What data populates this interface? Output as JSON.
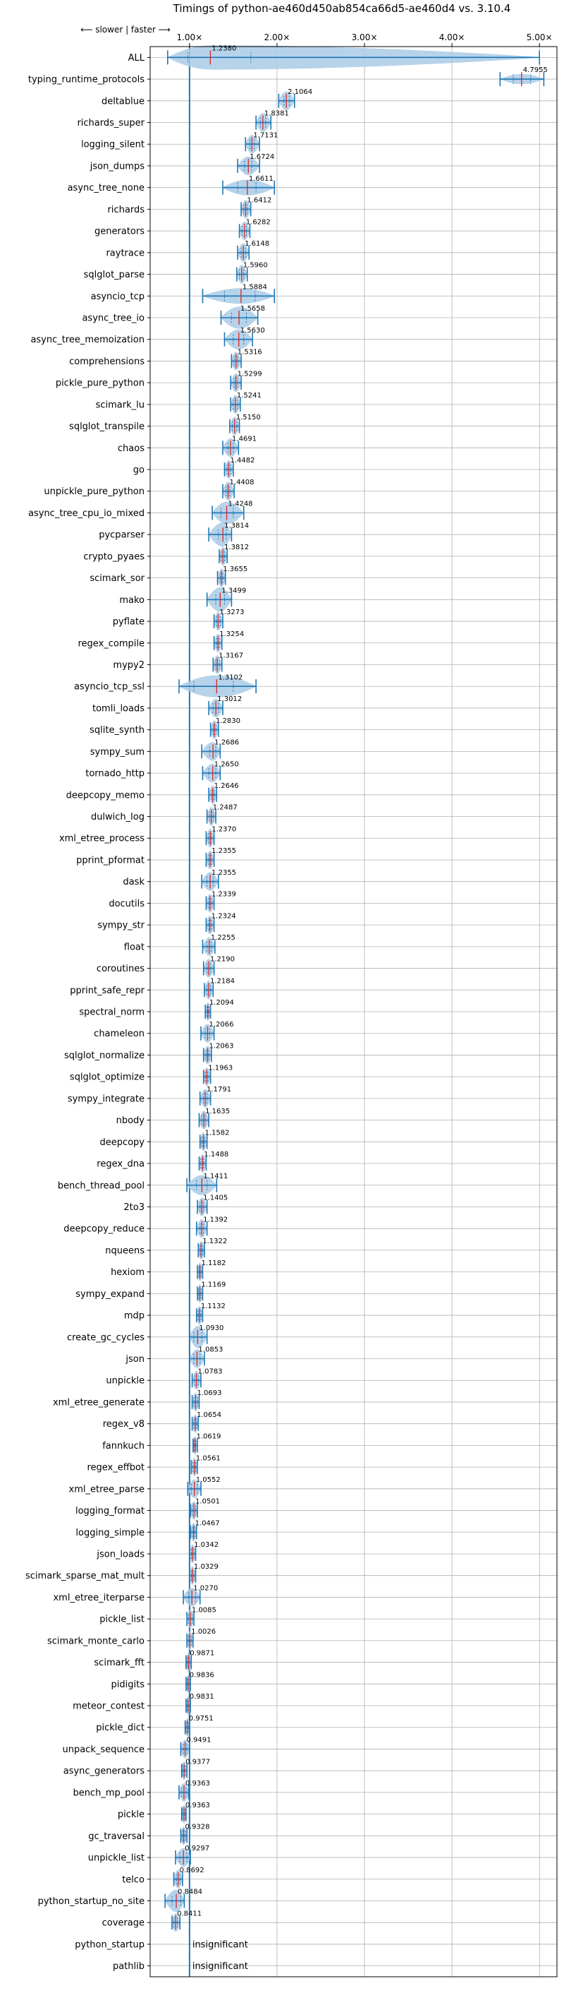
{
  "chart_data": {
    "type": "violin",
    "title": "Timings of python-ae460d450ab854ca66d5-ae460d4 vs. 3.10.4",
    "direction_hint": "⟵ slower | faster ⟶",
    "x_ticks": [
      1,
      2,
      3,
      4,
      5
    ],
    "x_tick_labels": [
      "1.00×",
      "2.00×",
      "3.00×",
      "4.00×",
      "5.00×"
    ],
    "xlim": [
      0.55,
      5.2
    ],
    "reference_line": 1.0,
    "grid": true,
    "colors": {
      "violin": "#a9cbe6",
      "line": "#1f77b4",
      "median": "#d62728",
      "grid": "#b0b0b0"
    },
    "rows": [
      {
        "label": "ALL",
        "value": 1.238,
        "min": 0.75,
        "max": 5.0,
        "q1": 0.98,
        "q3": 1.7,
        "spread": 0.55
      },
      {
        "label": "typing_runtime_protocols",
        "value": 4.7955,
        "min": 4.55,
        "max": 5.05,
        "q1": 4.7,
        "q3": 4.9,
        "spread": 0.22
      },
      {
        "label": "deltablue",
        "value": 2.1064,
        "min": 2.02,
        "max": 2.2,
        "q1": 2.08,
        "q3": 2.14
      },
      {
        "label": "richards_super",
        "value": 1.8381,
        "min": 1.76,
        "max": 1.93,
        "q1": 1.81,
        "q3": 1.87
      },
      {
        "label": "logging_silent",
        "value": 1.7131,
        "min": 1.64,
        "max": 1.8,
        "q1": 1.69,
        "q3": 1.74
      },
      {
        "label": "json_dumps",
        "value": 1.6724,
        "min": 1.55,
        "max": 1.8,
        "q1": 1.63,
        "q3": 1.71
      },
      {
        "label": "async_tree_none",
        "value": 1.6611,
        "min": 1.38,
        "max": 1.97,
        "q1": 1.55,
        "q3": 1.76,
        "spread": 0.35
      },
      {
        "label": "richards",
        "value": 1.6412,
        "min": 1.59,
        "max": 1.7,
        "q1": 1.62,
        "q3": 1.66
      },
      {
        "label": "generators",
        "value": 1.6282,
        "min": 1.57,
        "max": 1.69,
        "q1": 1.6,
        "q3": 1.65
      },
      {
        "label": "raytrace",
        "value": 1.6148,
        "min": 1.55,
        "max": 1.68,
        "q1": 1.59,
        "q3": 1.64
      },
      {
        "label": "sqlglot_parse",
        "value": 1.596,
        "min": 1.54,
        "max": 1.66,
        "q1": 1.57,
        "q3": 1.62
      },
      {
        "label": "asyncio_tcp",
        "value": 1.5884,
        "min": 1.15,
        "max": 1.97,
        "q1": 1.4,
        "q3": 1.75,
        "spread": 0.35
      },
      {
        "label": "async_tree_io",
        "value": 1.5658,
        "min": 1.36,
        "max": 1.78,
        "q1": 1.48,
        "q3": 1.65,
        "spread": 0.5
      },
      {
        "label": "async_tree_memoization",
        "value": 1.563,
        "min": 1.4,
        "max": 1.72,
        "q1": 1.5,
        "q3": 1.62,
        "spread": 0.45
      },
      {
        "label": "comprehensions",
        "value": 1.5316,
        "min": 1.48,
        "max": 1.59,
        "q1": 1.51,
        "q3": 1.55
      },
      {
        "label": "pickle_pure_python",
        "value": 1.5299,
        "min": 1.47,
        "max": 1.59,
        "q1": 1.51,
        "q3": 1.55
      },
      {
        "label": "scimark_lu",
        "value": 1.5241,
        "min": 1.47,
        "max": 1.58,
        "q1": 1.5,
        "q3": 1.55
      },
      {
        "label": "sqlglot_transpile",
        "value": 1.515,
        "min": 1.46,
        "max": 1.57,
        "q1": 1.49,
        "q3": 1.54
      },
      {
        "label": "chaos",
        "value": 1.4691,
        "min": 1.38,
        "max": 1.56,
        "q1": 1.44,
        "q3": 1.5
      },
      {
        "label": "go",
        "value": 1.4482,
        "min": 1.4,
        "max": 1.5,
        "q1": 1.43,
        "q3": 1.47
      },
      {
        "label": "unpickle_pure_python",
        "value": 1.4408,
        "min": 1.38,
        "max": 1.51,
        "q1": 1.42,
        "q3": 1.46
      },
      {
        "label": "async_tree_cpu_io_mixed",
        "value": 1.4248,
        "min": 1.26,
        "max": 1.62,
        "q1": 1.36,
        "q3": 1.5,
        "spread": 0.5
      },
      {
        "label": "pycparser",
        "value": 1.3814,
        "min": 1.22,
        "max": 1.48,
        "q1": 1.33,
        "q3": 1.42,
        "spread": 0.55
      },
      {
        "label": "crypto_pyaes",
        "value": 1.3812,
        "min": 1.34,
        "max": 1.43,
        "q1": 1.36,
        "q3": 1.4
      },
      {
        "label": "scimark_sor",
        "value": 1.3655,
        "min": 1.32,
        "max": 1.41,
        "q1": 1.35,
        "q3": 1.38
      },
      {
        "label": "mako",
        "value": 1.3499,
        "min": 1.2,
        "max": 1.48,
        "q1": 1.3,
        "q3": 1.4,
        "spread": 0.55
      },
      {
        "label": "pyflate",
        "value": 1.3273,
        "min": 1.28,
        "max": 1.38,
        "q1": 1.31,
        "q3": 1.35
      },
      {
        "label": "regex_compile",
        "value": 1.3254,
        "min": 1.28,
        "max": 1.37,
        "q1": 1.31,
        "q3": 1.34
      },
      {
        "label": "mypy2",
        "value": 1.3167,
        "min": 1.27,
        "max": 1.37,
        "q1": 1.3,
        "q3": 1.34
      },
      {
        "label": "asyncio_tcp_ssl",
        "value": 1.3102,
        "min": 0.88,
        "max": 1.76,
        "q1": 1.05,
        "q3": 1.5,
        "spread": 0.5
      },
      {
        "label": "tomli_loads",
        "value": 1.3012,
        "min": 1.22,
        "max": 1.38,
        "q1": 1.27,
        "q3": 1.33
      },
      {
        "label": "sqlite_synth",
        "value": 1.283,
        "min": 1.24,
        "max": 1.33,
        "q1": 1.27,
        "q3": 1.3
      },
      {
        "label": "sympy_sum",
        "value": 1.2686,
        "min": 1.14,
        "max": 1.35,
        "q1": 1.23,
        "q3": 1.3
      },
      {
        "label": "tornado_http",
        "value": 1.265,
        "min": 1.15,
        "max": 1.35,
        "q1": 1.22,
        "q3": 1.3
      },
      {
        "label": "deepcopy_memo",
        "value": 1.2646,
        "min": 1.22,
        "max": 1.31,
        "q1": 1.25,
        "q3": 1.28
      },
      {
        "label": "dulwich_log",
        "value": 1.2487,
        "min": 1.2,
        "max": 1.3,
        "q1": 1.23,
        "q3": 1.27
      },
      {
        "label": "xml_etree_process",
        "value": 1.237,
        "min": 1.19,
        "max": 1.28,
        "q1": 1.22,
        "q3": 1.25
      },
      {
        "label": "pprint_pformat",
        "value": 1.2355,
        "min": 1.19,
        "max": 1.28,
        "q1": 1.22,
        "q3": 1.25
      },
      {
        "label": "dask",
        "value": 1.2355,
        "min": 1.14,
        "max": 1.33,
        "q1": 1.2,
        "q3": 1.27
      },
      {
        "label": "docutils",
        "value": 1.2339,
        "min": 1.19,
        "max": 1.28,
        "q1": 1.22,
        "q3": 1.25
      },
      {
        "label": "sympy_str",
        "value": 1.2324,
        "min": 1.19,
        "max": 1.28,
        "q1": 1.22,
        "q3": 1.25
      },
      {
        "label": "float",
        "value": 1.2255,
        "min": 1.15,
        "max": 1.29,
        "q1": 1.2,
        "q3": 1.25
      },
      {
        "label": "coroutines",
        "value": 1.219,
        "min": 1.16,
        "max": 1.28,
        "q1": 1.2,
        "q3": 1.24
      },
      {
        "label": "pprint_safe_repr",
        "value": 1.2184,
        "min": 1.17,
        "max": 1.27,
        "q1": 1.2,
        "q3": 1.24
      },
      {
        "label": "spectral_norm",
        "value": 1.2094,
        "min": 1.18,
        "max": 1.24,
        "q1": 1.2,
        "q3": 1.22
      },
      {
        "label": "chameleon",
        "value": 1.2066,
        "min": 1.13,
        "max": 1.28,
        "q1": 1.18,
        "q3": 1.23
      },
      {
        "label": "sqlglot_normalize",
        "value": 1.2063,
        "min": 1.16,
        "max": 1.25,
        "q1": 1.19,
        "q3": 1.22
      },
      {
        "label": "sqlglot_optimize",
        "value": 1.1963,
        "min": 1.16,
        "max": 1.24,
        "q1": 1.18,
        "q3": 1.21
      },
      {
        "label": "sympy_integrate",
        "value": 1.1791,
        "min": 1.12,
        "max": 1.24,
        "q1": 1.16,
        "q3": 1.2
      },
      {
        "label": "nbody",
        "value": 1.1635,
        "min": 1.11,
        "max": 1.22,
        "q1": 1.14,
        "q3": 1.18
      },
      {
        "label": "deepcopy",
        "value": 1.1582,
        "min": 1.12,
        "max": 1.2,
        "q1": 1.14,
        "q3": 1.17
      },
      {
        "label": "regex_dna",
        "value": 1.1488,
        "min": 1.11,
        "max": 1.19,
        "q1": 1.13,
        "q3": 1.16
      },
      {
        "label": "bench_thread_pool",
        "value": 1.1411,
        "min": 0.97,
        "max": 1.31,
        "q1": 1.08,
        "q3": 1.2,
        "spread": 0.45
      },
      {
        "label": "2to3",
        "value": 1.1405,
        "min": 1.09,
        "max": 1.2,
        "q1": 1.12,
        "q3": 1.16
      },
      {
        "label": "deepcopy_reduce",
        "value": 1.1392,
        "min": 1.08,
        "max": 1.2,
        "q1": 1.12,
        "q3": 1.16
      },
      {
        "label": "nqueens",
        "value": 1.1322,
        "min": 1.1,
        "max": 1.17,
        "q1": 1.12,
        "q3": 1.15
      },
      {
        "label": "hexiom",
        "value": 1.1182,
        "min": 1.09,
        "max": 1.15,
        "q1": 1.11,
        "q3": 1.13
      },
      {
        "label": "sympy_expand",
        "value": 1.1169,
        "min": 1.09,
        "max": 1.15,
        "q1": 1.1,
        "q3": 1.13
      },
      {
        "label": "mdp",
        "value": 1.1132,
        "min": 1.08,
        "max": 1.15,
        "q1": 1.1,
        "q3": 1.13
      },
      {
        "label": "create_gc_cycles",
        "value": 1.093,
        "min": 1.0,
        "max": 1.2,
        "q1": 1.05,
        "q3": 1.14,
        "spread": 0.5
      },
      {
        "label": "json",
        "value": 1.0853,
        "min": 1.0,
        "max": 1.17,
        "q1": 1.05,
        "q3": 1.12
      },
      {
        "label": "unpickle",
        "value": 1.0783,
        "min": 1.03,
        "max": 1.13,
        "q1": 1.06,
        "q3": 1.1
      },
      {
        "label": "xml_etree_generate",
        "value": 1.0693,
        "min": 1.03,
        "max": 1.11,
        "q1": 1.05,
        "q3": 1.09
      },
      {
        "label": "regex_v8",
        "value": 1.0654,
        "min": 1.03,
        "max": 1.1,
        "q1": 1.05,
        "q3": 1.08
      },
      {
        "label": "fannkuch",
        "value": 1.0619,
        "min": 1.04,
        "max": 1.09,
        "q1": 1.05,
        "q3": 1.07
      },
      {
        "label": "regex_effbot",
        "value": 1.0561,
        "min": 1.02,
        "max": 1.09,
        "q1": 1.04,
        "q3": 1.07
      },
      {
        "label": "xml_etree_parse",
        "value": 1.0552,
        "min": 0.98,
        "max": 1.13,
        "q1": 1.02,
        "q3": 1.09
      },
      {
        "label": "logging_format",
        "value": 1.0501,
        "min": 1.01,
        "max": 1.09,
        "q1": 1.03,
        "q3": 1.07
      },
      {
        "label": "logging_simple",
        "value": 1.0467,
        "min": 1.01,
        "max": 1.08,
        "q1": 1.03,
        "q3": 1.06
      },
      {
        "label": "json_loads",
        "value": 1.0342,
        "min": 1.0,
        "max": 1.07,
        "q1": 1.02,
        "q3": 1.05
      },
      {
        "label": "scimark_sparse_mat_mult",
        "value": 1.0329,
        "min": 1.0,
        "max": 1.07,
        "q1": 1.02,
        "q3": 1.05
      },
      {
        "label": "xml_etree_iterparse",
        "value": 1.027,
        "min": 0.93,
        "max": 1.12,
        "q1": 0.99,
        "q3": 1.07
      },
      {
        "label": "pickle_list",
        "value": 1.0085,
        "min": 0.97,
        "max": 1.05,
        "q1": 0.99,
        "q3": 1.03
      },
      {
        "label": "scimark_monte_carlo",
        "value": 1.0026,
        "min": 0.97,
        "max": 1.04,
        "q1": 0.99,
        "q3": 1.02
      },
      {
        "label": "scimark_fft",
        "value": 0.9871,
        "min": 0.96,
        "max": 1.02,
        "q1": 0.97,
        "q3": 1.0
      },
      {
        "label": "pidigits",
        "value": 0.9836,
        "min": 0.96,
        "max": 1.01,
        "q1": 0.97,
        "q3": 1.0
      },
      {
        "label": "meteor_contest",
        "value": 0.9831,
        "min": 0.96,
        "max": 1.01,
        "q1": 0.97,
        "q3": 1.0
      },
      {
        "label": "pickle_dict",
        "value": 0.9751,
        "min": 0.95,
        "max": 1.0,
        "q1": 0.96,
        "q3": 0.99
      },
      {
        "label": "unpack_sequence",
        "value": 0.9491,
        "min": 0.9,
        "max": 1.0,
        "q1": 0.93,
        "q3": 0.97
      },
      {
        "label": "async_generators",
        "value": 0.9377,
        "min": 0.91,
        "max": 0.97,
        "q1": 0.92,
        "q3": 0.95
      },
      {
        "label": "bench_mp_pool",
        "value": 0.9363,
        "min": 0.88,
        "max": 0.99,
        "q1": 0.91,
        "q3": 0.96
      },
      {
        "label": "pickle",
        "value": 0.9363,
        "min": 0.91,
        "max": 0.96,
        "q1": 0.92,
        "q3": 0.95
      },
      {
        "label": "gc_traversal",
        "value": 0.9328,
        "min": 0.9,
        "max": 0.97,
        "q1": 0.92,
        "q3": 0.95
      },
      {
        "label": "unpickle_list",
        "value": 0.9297,
        "min": 0.84,
        "max": 1.01,
        "q1": 0.89,
        "q3": 0.97
      },
      {
        "label": "telco",
        "value": 0.8692,
        "min": 0.82,
        "max": 0.92,
        "q1": 0.85,
        "q3": 0.89
      },
      {
        "label": "python_startup_no_site",
        "value": 0.8484,
        "min": 0.72,
        "max": 0.94,
        "q1": 0.8,
        "q3": 0.9,
        "spread": 0.5
      },
      {
        "label": "coverage",
        "value": 0.8411,
        "min": 0.8,
        "max": 0.89,
        "q1": 0.82,
        "q3": 0.86
      },
      {
        "label": "python_startup",
        "insignificant": true
      },
      {
        "label": "pathlib",
        "insignificant": true
      }
    ],
    "insignificant_label": "insignificant"
  }
}
